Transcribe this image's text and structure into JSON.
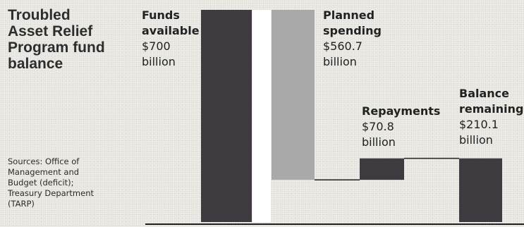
{
  "title": "Troubled\nAsset Relief\nProgram fund\nbalance",
  "sources": "Sources: Office of\nManagement and\nBudget (deficit);\nTreasury Department\n(TARP)",
  "chart_data": {
    "type": "bar",
    "subtype": "waterfall",
    "unit": "billion",
    "steps": [
      {
        "name": "Funds available",
        "value": 700,
        "kind": "total",
        "label": [
          "Funds",
          "available",
          "$700",
          "billion"
        ]
      },
      {
        "name": "Planned spending",
        "value": -560.7,
        "kind": "decrease",
        "label": [
          "Planned",
          "spending",
          "$560.7",
          "billion"
        ]
      },
      {
        "name": "Repayments",
        "value": 70.8,
        "kind": "increase",
        "label": [
          "Repayments",
          "$70.8",
          "billion"
        ]
      },
      {
        "name": "Balance remaining",
        "value": 210.1,
        "kind": "total",
        "label": [
          "Balance",
          "remaining",
          "$210.1",
          "billion"
        ]
      }
    ],
    "colors": {
      "dark": "#3f3a3f",
      "light": "#a9a9a9",
      "connector": "#222222",
      "axis": "#222222"
    },
    "ylim": [
      0,
      700
    ]
  }
}
